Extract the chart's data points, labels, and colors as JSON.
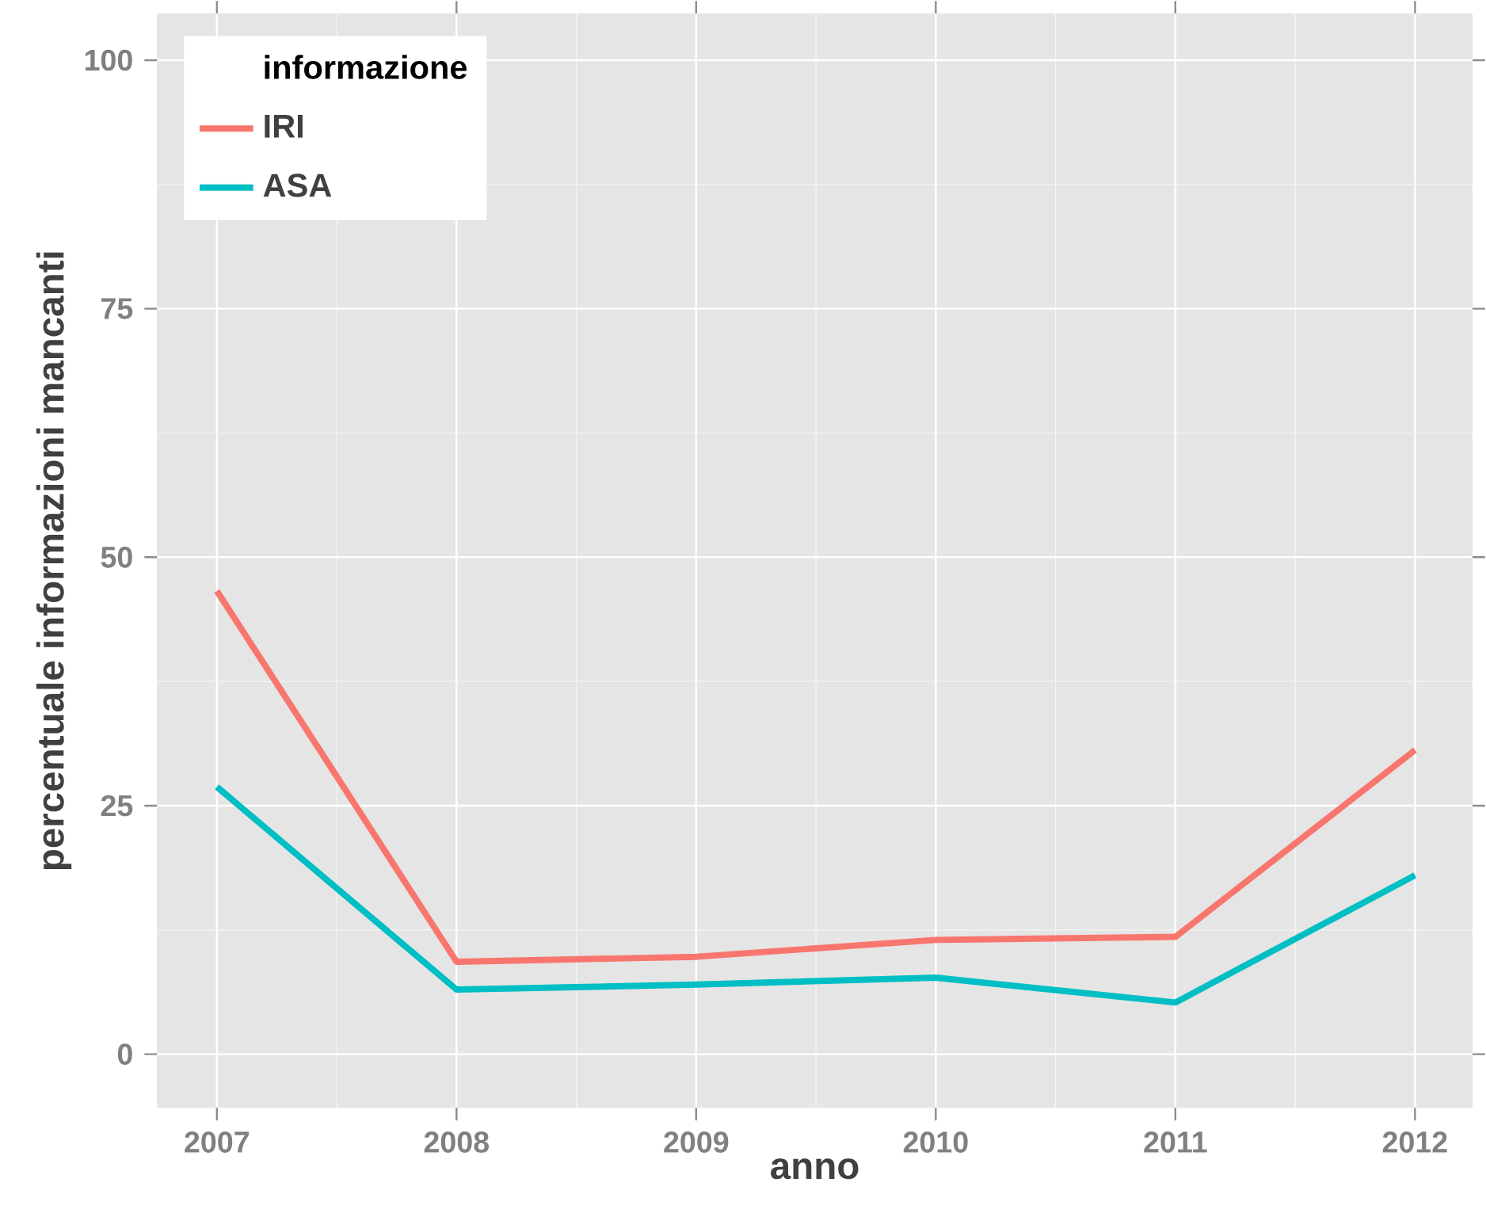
{
  "chart_data": {
    "type": "line",
    "xlabel": "anno",
    "ylabel": "percentuale informazioni mancanti",
    "legend_title": "informazione",
    "x": [
      2007,
      2008,
      2009,
      2010,
      2011,
      2012
    ],
    "series": [
      {
        "name": "IRI",
        "color": "#f8766d",
        "values": [
          46.6,
          9.3,
          9.8,
          11.5,
          11.8,
          30.6
        ]
      },
      {
        "name": "ASA",
        "color": "#00bfc4",
        "values": [
          26.9,
          6.5,
          7.0,
          7.7,
          5.2,
          18.0
        ]
      }
    ],
    "xlim": [
      2006.75,
      2012.24
    ],
    "ylim": [
      -5.4,
      104.7
    ],
    "xticks": [
      2007,
      2008,
      2009,
      2010,
      2011,
      2012
    ],
    "yticks": [
      0,
      25,
      50,
      75,
      100
    ],
    "grid": true,
    "legend": "top left",
    "marker": "none",
    "line_style": "solid"
  }
}
